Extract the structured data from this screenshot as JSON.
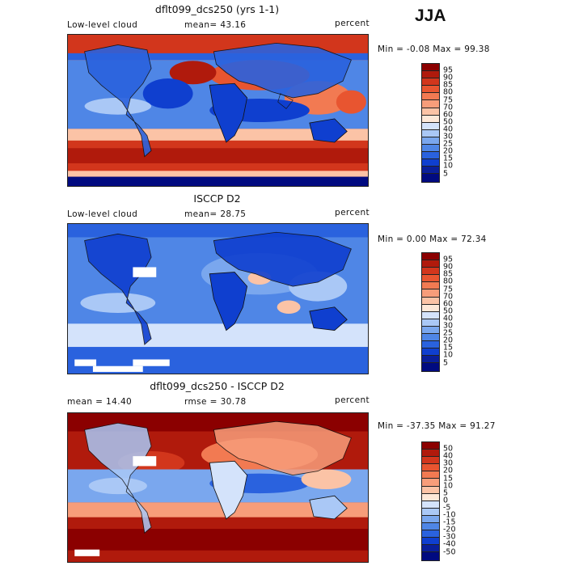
{
  "season": "JJA",
  "panels": [
    {
      "title": "dflt099_dcs250 (yrs 1-1)",
      "left_label": "Low-level cloud",
      "center_label": "mean=  43.16",
      "units": "percent",
      "minmax": "Min =   -0.08 Max =   99.38",
      "colorbar_levels": [
        "95",
        "90",
        "85",
        "80",
        "75",
        "70",
        "60",
        "50",
        "40",
        "30",
        "25",
        "20",
        "15",
        "10",
        "5"
      ],
      "colorbar_colors": [
        "#8b0000",
        "#b01a0c",
        "#d2361c",
        "#e85530",
        "#f27a52",
        "#f79d7a",
        "#fbc3a6",
        "#fde8d8",
        "#d4e3fb",
        "#aac8f6",
        "#7aa7ee",
        "#4f86e6",
        "#2a62de",
        "#0f3fcf",
        "#0a1f9a",
        "#000a80"
      ]
    },
    {
      "title": "ISCCP D2",
      "left_label": "Low-level cloud",
      "center_label": "mean=  28.75",
      "units": "percent",
      "minmax": "Min =    0.00 Max =   72.34",
      "colorbar_levels": [
        "95",
        "90",
        "85",
        "80",
        "75",
        "70",
        "60",
        "50",
        "40",
        "30",
        "25",
        "20",
        "15",
        "10",
        "5"
      ],
      "colorbar_colors": [
        "#8b0000",
        "#b01a0c",
        "#d2361c",
        "#e85530",
        "#f27a52",
        "#f79d7a",
        "#fbc3a6",
        "#fde8d8",
        "#d4e3fb",
        "#aac8f6",
        "#7aa7ee",
        "#4f86e6",
        "#2a62de",
        "#0f3fcf",
        "#0a1f9a",
        "#000a80"
      ]
    },
    {
      "title": "dflt099_dcs250 - ISCCP D2",
      "left_label": "mean =  14.40",
      "center_label": "rmse =  30.78",
      "units": "percent",
      "minmax": "Min =  -37.35 Max =   91.27",
      "colorbar_levels": [
        "50",
        "40",
        "30",
        "20",
        "15",
        "10",
        "5",
        "0",
        "-5",
        "-10",
        "-15",
        "-20",
        "-30",
        "-40",
        "-50"
      ],
      "colorbar_colors": [
        "#8b0000",
        "#b01a0c",
        "#d2361c",
        "#e85530",
        "#f27a52",
        "#f79d7a",
        "#fbc3a6",
        "#fde8d8",
        "#d4e3fb",
        "#aac8f6",
        "#7aa7ee",
        "#4f86e6",
        "#2a62de",
        "#0f3fcf",
        "#0a1f9a",
        "#000a80"
      ]
    }
  ]
}
